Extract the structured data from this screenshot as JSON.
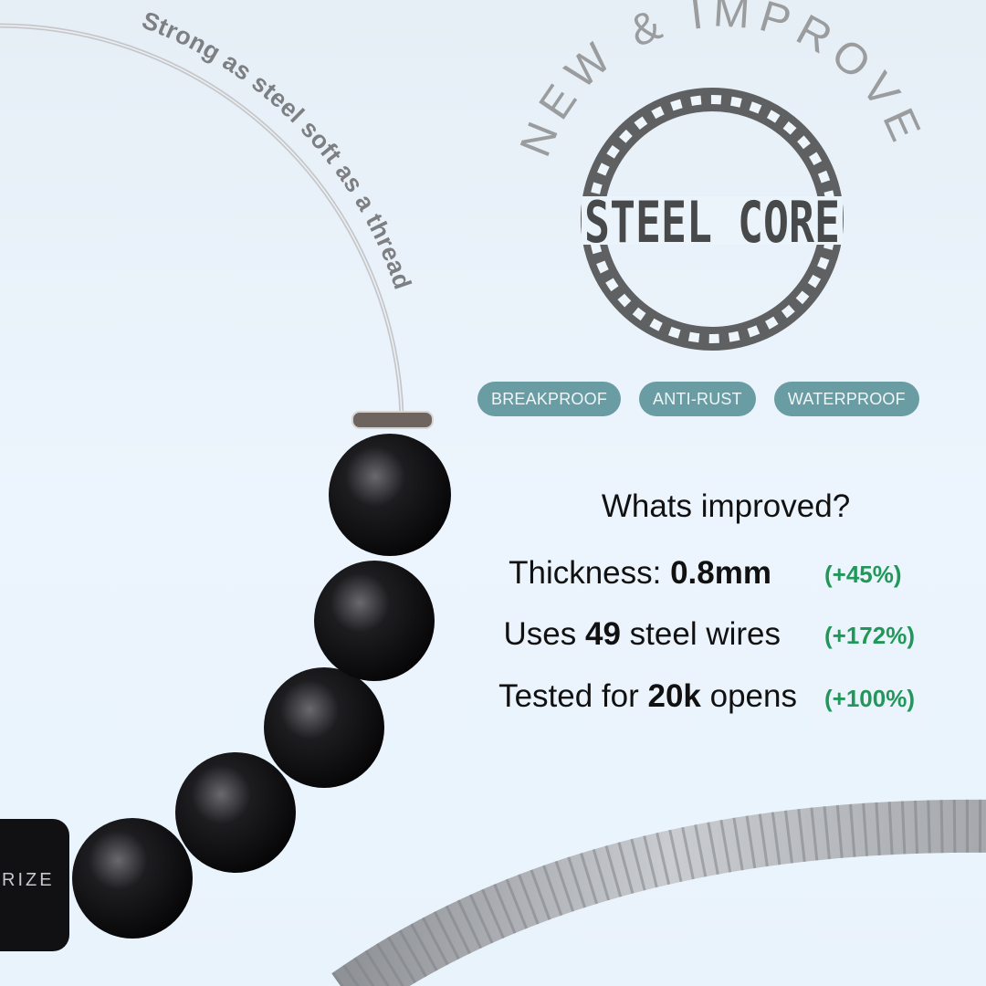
{
  "tagline": "Strong as steel soft as a thread",
  "badge": {
    "arc_text": "NEW & IMPROVED",
    "logo_text": "STEEL CORE"
  },
  "clasp_brand": "RIZE",
  "tags": [
    "BREAKPROOF",
    "ANTI-RUST",
    "WATERPROOF"
  ],
  "improvements": {
    "heading": "Whats improved?",
    "rows": [
      {
        "pre": "Thickness: ",
        "bold": "0.8mm",
        "post": "",
        "change": "(+45%)"
      },
      {
        "pre": "Uses ",
        "bold": "49",
        "post": " steel wires",
        "change": "(+172%)"
      },
      {
        "pre": "Tested for ",
        "bold": "20k",
        "post": " opens",
        "change": "(+100%)"
      }
    ]
  },
  "colors": {
    "tag_bg": "#6a9ca4",
    "change_green": "#21985a",
    "badge_gray": "#5f6062",
    "arc_text_gray": "#9a9c9e"
  }
}
